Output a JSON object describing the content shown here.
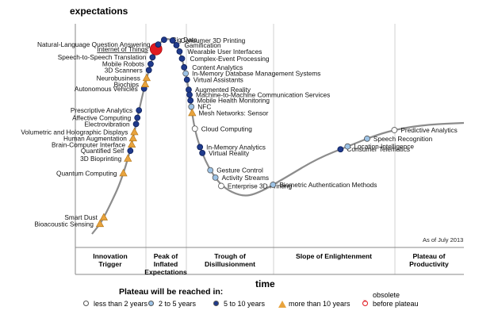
{
  "chart_data": {
    "type": "scatter",
    "y_axis_title": "expectations",
    "x_axis_title": "time",
    "as_of": "As of July 2013",
    "phases": [
      {
        "lines": [
          "Innovation",
          "Trigger"
        ]
      },
      {
        "lines": [
          "Peak of",
          "Inflated",
          "Expectations"
        ]
      },
      {
        "lines": [
          "Trough of",
          "Disillusionment"
        ]
      },
      {
        "lines": [
          "Slope of Enlightenment"
        ]
      },
      {
        "lines": [
          "Plateau of",
          "Productivity"
        ]
      }
    ],
    "legend": {
      "title": "Plateau will be reached in:",
      "items": [
        {
          "category": "lt2",
          "label": "less than 2 years"
        },
        {
          "category": "2to5",
          "label": "2 to 5 years"
        },
        {
          "category": "5to10",
          "label": "5 to 10 years"
        },
        {
          "category": "gt10",
          "label": "more than 10 years"
        },
        {
          "category": "obsolete",
          "label_top": "obsolete",
          "label": "before plateau"
        }
      ]
    },
    "category_colors": {
      "lt2": "#FFFFFF",
      "2to5": "#9DC3E6",
      "5to10": "#1F3A8C",
      "gt10": "#E8A33D",
      "obsolete": "#FFFFFF",
      "highlight": "#E11B22"
    },
    "technologies": [
      {
        "name": "Bioacoustic Sensing",
        "t": 0.02,
        "category": "gt10"
      },
      {
        "name": "Smart Dust",
        "t": 0.032,
        "category": "gt10"
      },
      {
        "name": "Quantum Computing",
        "t": 0.108,
        "category": "gt10"
      },
      {
        "name": "3D Bioprinting",
        "t": 0.132,
        "category": "gt10"
      },
      {
        "name": "Quantified Self",
        "t": 0.145,
        "category": "5to10"
      },
      {
        "name": "Brain-Computer Interface",
        "t": 0.155,
        "category": "gt10"
      },
      {
        "name": "Human Augmentation",
        "t": 0.165,
        "category": "gt10"
      },
      {
        "name": "Volumetric and Holographic Displays",
        "t": 0.175,
        "category": "gt10"
      },
      {
        "name": "Electrovibration",
        "t": 0.188,
        "category": "5to10"
      },
      {
        "name": "Affective Computing",
        "t": 0.198,
        "category": "5to10"
      },
      {
        "name": "Prescriptive Analytics",
        "t": 0.21,
        "category": "5to10"
      },
      {
        "name": "Autonomous Vehicles",
        "t": 0.245,
        "category": "5to10"
      },
      {
        "name": "Biochips",
        "t": 0.252,
        "category": "gt10"
      },
      {
        "name": "Neurobusiness",
        "t": 0.262,
        "category": "gt10"
      },
      {
        "name": "3D Scanners",
        "t": 0.275,
        "category": "5to10"
      },
      {
        "name": "Mobile Robots",
        "t": 0.285,
        "category": "5to10"
      },
      {
        "name": "Speech-to-Speech Translation",
        "t": 0.296,
        "category": "5to10"
      },
      {
        "name": "Internet of Things",
        "t": 0.31,
        "category": "highlight"
      },
      {
        "name": "Natural-Language Question Answering",
        "t": 0.318,
        "category": "5to10"
      },
      {
        "name": "Big Data",
        "t": 0.33,
        "category": "5to10"
      },
      {
        "name": "Consumer 3D Printing",
        "t": 0.345,
        "category": "5to10"
      },
      {
        "name": "Gamification",
        "t": 0.355,
        "category": "5to10"
      },
      {
        "name": "Wearable User Interfaces",
        "t": 0.366,
        "category": "5to10"
      },
      {
        "name": "Complex-Event Processing",
        "t": 0.378,
        "category": "5to10"
      },
      {
        "name": "Content Analytics",
        "t": 0.392,
        "category": "5to10"
      },
      {
        "name": "In-Memory Database Management Systems",
        "t": 0.402,
        "category": "2to5"
      },
      {
        "name": "Virtual Assistants",
        "t": 0.412,
        "category": "5to10"
      },
      {
        "name": "Augmented Reality",
        "t": 0.428,
        "category": "5to10"
      },
      {
        "name": "Machine-to-Machine Communication Services",
        "t": 0.436,
        "category": "5to10"
      },
      {
        "name": "Mobile Health Monitoring",
        "t": 0.445,
        "category": "5to10"
      },
      {
        "name": "NFC",
        "t": 0.455,
        "category": "2to5"
      },
      {
        "name": "Mesh Networks: Sensor",
        "t": 0.465,
        "category": "gt10"
      },
      {
        "name": "Cloud Computing",
        "t": 0.49,
        "category": "lt2"
      },
      {
        "name": "In-Memory Analytics",
        "t": 0.52,
        "category": "5to10"
      },
      {
        "name": "Virtual Reality",
        "t": 0.53,
        "category": "5to10"
      },
      {
        "name": "Gesture Control",
        "t": 0.56,
        "category": "2to5"
      },
      {
        "name": "Activity Streams",
        "t": 0.574,
        "category": "2to5"
      },
      {
        "name": "Enterprise 3D Printing",
        "t": 0.59,
        "category": "lt2"
      },
      {
        "name": "Biometric Authentication Methods",
        "t": 0.68,
        "category": "2to5"
      },
      {
        "name": "Consumer Telematics",
        "t": 0.8,
        "category": "5to10"
      },
      {
        "name": "Location Intelligence",
        "t": 0.812,
        "category": "2to5"
      },
      {
        "name": "Speech Recognition",
        "t": 0.845,
        "category": "2to5"
      },
      {
        "name": "Predictive Analytics",
        "t": 0.89,
        "category": "lt2"
      }
    ]
  }
}
